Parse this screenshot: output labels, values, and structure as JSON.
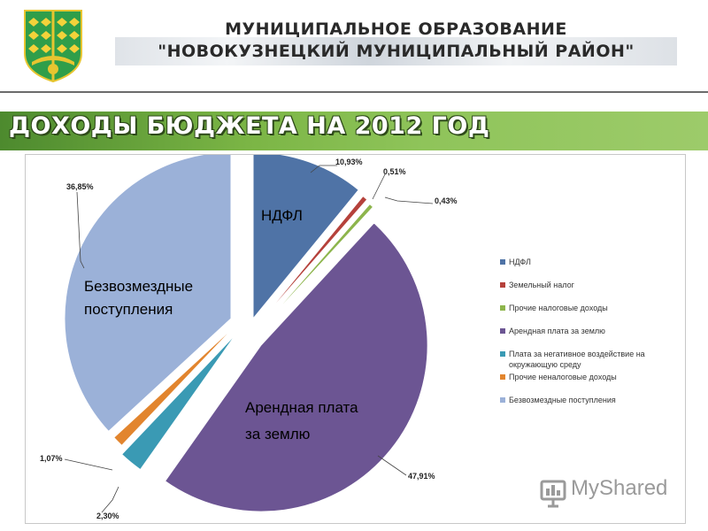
{
  "header": {
    "org_line_1": "МУНИЦИПАЛЬНОЕ ОБРАЗОВАНИЕ",
    "org_line_2": "\"НОВОКУЗНЕЦКИЙ МУНИЦИПАЛЬНЫЙ РАЙОН\""
  },
  "title": "ДОХОДЫ БЮДЖЕТА НА 2012 ГОД",
  "watermark": "MyShared",
  "chart_data": {
    "type": "pie",
    "title": "",
    "legend_position": "right",
    "exploded": true,
    "series": [
      {
        "name": "НДФЛ",
        "value": 10.93,
        "label": "10,93%",
        "in_label": "НДФЛ",
        "color": "#4f73a6"
      },
      {
        "name": "Земельный налог",
        "value": 0.51,
        "label": "0,51%",
        "in_label": "",
        "color": "#b5413b"
      },
      {
        "name": "Прочие налоговые доходы",
        "value": 0.43,
        "label": "0,43%",
        "in_label": "",
        "color": "#8db54c"
      },
      {
        "name": "Арендная плата за землю",
        "value": 47.91,
        "label": "47,91%",
        "in_label": "Арендная плата за землю",
        "color": "#6c5593"
      },
      {
        "name": "Плата за негативное воздействие на окружающую среду",
        "value": 2.3,
        "label": "2,30%",
        "in_label": "",
        "color": "#3a9ab4"
      },
      {
        "name": "Прочие неналоговые доходы",
        "value": 1.07,
        "label": "1,07%",
        "in_label": "",
        "color": "#e2852e"
      },
      {
        "name": "Безвозмездные поступления",
        "value": 36.85,
        "label": "36,85%",
        "in_label": "Безвозмездные поступления",
        "color": "#9bb1d8"
      }
    ]
  }
}
